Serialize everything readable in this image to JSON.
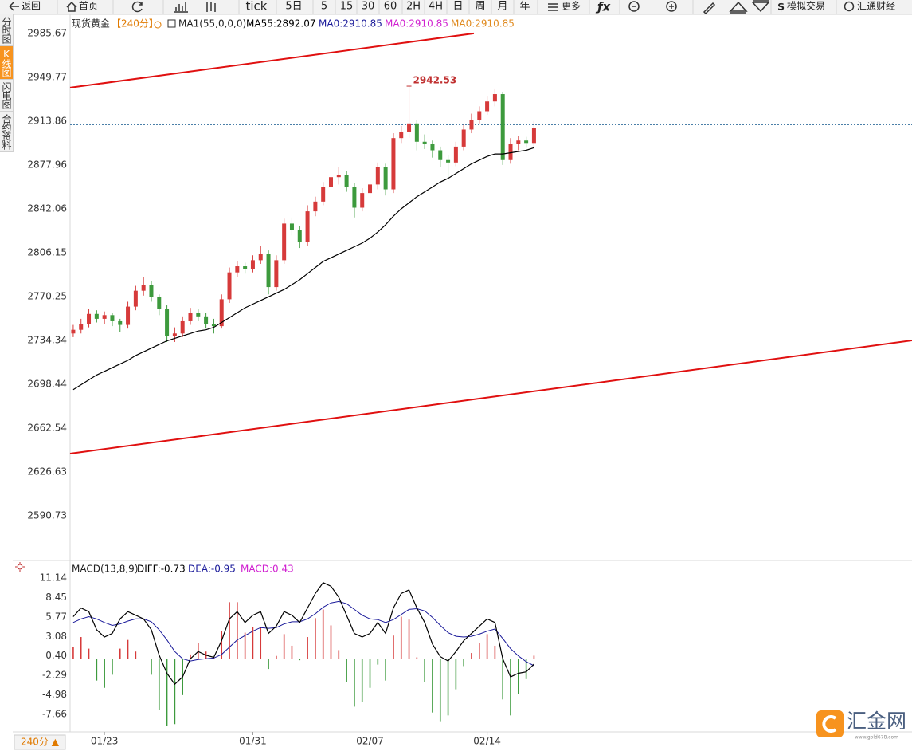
{
  "toolbar": {
    "back": "返回",
    "home": "首页",
    "tick": "tick",
    "periods": [
      "5日",
      "5",
      "15",
      "30",
      "60",
      "2H",
      "4H",
      "日",
      "周",
      "月",
      "年"
    ],
    "more": "更多",
    "sim": "模拟交易",
    "brand": "汇通财经"
  },
  "sidebar": [
    "分时图",
    "K线图",
    "闪电图",
    "合约资料"
  ],
  "period_button": "240分 ▲",
  "logo": "汇金网",
  "logo_url": "www.gold678.com",
  "chart_data": [
    {
      "type": "candlestick",
      "title": "现货黄金",
      "period": "【240分】",
      "indicator": "MA1(55,0,0,0)",
      "header": [
        {
          "text": "MA55:2892.07",
          "color": "#000000"
        },
        {
          "text": "MA0:2910.85",
          "color": "#1a1a9a"
        },
        {
          "text": "MA0:2910.85",
          "color": "#d020d0"
        },
        {
          "text": "MA0:2910.85",
          "color": "#e08a1e"
        }
      ],
      "up_color": "#d63a3a",
      "down_color": "#3d9a3d",
      "xlim": [
        -0.4,
        107.4
      ],
      "ylim": [
        2556.1,
        3001.3
      ],
      "yticks": [
        2985.67,
        2949.77,
        2913.86,
        2877.96,
        2842.06,
        2806.15,
        2770.25,
        2734.34,
        2698.44,
        2662.54,
        2626.63,
        2590.73
      ],
      "price_line": 2910.85,
      "candles": [
        [
          2740,
          2747,
          2737,
          2743
        ],
        [
          2743,
          2752,
          2740,
          2748
        ],
        [
          2748,
          2760,
          2745,
          2756
        ],
        [
          2756,
          2759,
          2749,
          2752
        ],
        [
          2752,
          2758,
          2748,
          2755
        ],
        [
          2755,
          2757,
          2746,
          2750
        ],
        [
          2750,
          2752,
          2741,
          2747
        ],
        [
          2747,
          2766,
          2744,
          2762
        ],
        [
          2762,
          2779,
          2759,
          2775
        ],
        [
          2775,
          2786,
          2771,
          2780
        ],
        [
          2780,
          2783,
          2766,
          2770
        ],
        [
          2770,
          2772,
          2755,
          2760
        ],
        [
          2760,
          2763,
          2733,
          2738
        ],
        [
          2738,
          2745,
          2733,
          2740
        ],
        [
          2740,
          2754,
          2737,
          2750
        ],
        [
          2750,
          2761,
          2747,
          2757
        ],
        [
          2757,
          2760,
          2750,
          2754
        ],
        [
          2754,
          2757,
          2744,
          2748
        ],
        [
          2748,
          2752,
          2740,
          2746
        ],
        [
          2746,
          2772,
          2744,
          2768
        ],
        [
          2768,
          2794,
          2765,
          2790
        ],
        [
          2790,
          2799,
          2786,
          2795
        ],
        [
          2795,
          2798,
          2789,
          2793
        ],
        [
          2793,
          2804,
          2790,
          2800
        ],
        [
          2800,
          2812,
          2797,
          2805
        ],
        [
          2805,
          2808,
          2772,
          2778
        ],
        [
          2778,
          2804,
          2775,
          2800
        ],
        [
          2800,
          2834,
          2797,
          2830
        ],
        [
          2830,
          2835,
          2820,
          2825
        ],
        [
          2825,
          2828,
          2810,
          2815
        ],
        [
          2815,
          2845,
          2812,
          2840
        ],
        [
          2840,
          2852,
          2836,
          2848
        ],
        [
          2848,
          2864,
          2845,
          2860
        ],
        [
          2860,
          2884,
          2856,
          2868
        ],
        [
          2868,
          2876,
          2862,
          2870
        ],
        [
          2870,
          2873,
          2856,
          2860
        ],
        [
          2860,
          2863,
          2835,
          2843
        ],
        [
          2843,
          2859,
          2840,
          2855
        ],
        [
          2855,
          2866,
          2851,
          2862
        ],
        [
          2862,
          2880,
          2858,
          2876
        ],
        [
          2876,
          2879,
          2853,
          2858
        ],
        [
          2858,
          2904,
          2855,
          2900
        ],
        [
          2900,
          2910,
          2896,
          2905
        ],
        [
          2905,
          2942.53,
          2900,
          2912
        ],
        [
          2912,
          2915,
          2890,
          2897
        ],
        [
          2897,
          2903,
          2891,
          2895
        ],
        [
          2895,
          2898,
          2884,
          2890
        ],
        [
          2890,
          2893,
          2876,
          2882
        ],
        [
          2882,
          2886,
          2868,
          2880
        ],
        [
          2880,
          2897,
          2877,
          2893
        ],
        [
          2893,
          2911,
          2890,
          2907
        ],
        [
          2907,
          2920,
          2904,
          2915
        ],
        [
          2915,
          2926,
          2912,
          2922
        ],
        [
          2922,
          2934,
          2919,
          2930
        ],
        [
          2930,
          2940,
          2926,
          2936
        ],
        [
          2936,
          2938,
          2878,
          2882
        ],
        [
          2882,
          2900,
          2879,
          2895
        ],
        [
          2895,
          2902,
          2890,
          2898
        ],
        [
          2898,
          2901,
          2892,
          2896
        ],
        [
          2896,
          2914,
          2893,
          2908
        ]
      ],
      "lines": [
        {
          "color": "#000000",
          "values": [
            2694,
            2698,
            2702,
            2706,
            2709,
            2712,
            2715,
            2718,
            2722,
            2725,
            2728,
            2731,
            2734,
            2736,
            2738,
            2740,
            2742,
            2743,
            2745,
            2749,
            2753,
            2757,
            2761,
            2764,
            2767,
            2770,
            2773,
            2776,
            2780,
            2784,
            2789,
            2794,
            2799,
            2802,
            2805,
            2808,
            2811,
            2814,
            2818,
            2823,
            2829,
            2836,
            2842,
            2847,
            2852,
            2856,
            2860,
            2864,
            2867,
            2871,
            2875,
            2879,
            2882,
            2885,
            2887,
            2887,
            2888,
            2889,
            2890,
            2892.07
          ]
        }
      ],
      "trendlines": [
        {
          "color": "#e01010",
          "x": [
            -0.4,
            51.3
          ],
          "y": [
            2941.3,
            2985.7
          ]
        },
        {
          "color": "#e01010",
          "x": [
            -0.4,
            107.4
          ],
          "y": [
            2641.6,
            2734.3
          ]
        }
      ]
    },
    {
      "type": "macd",
      "title": "MACD(13,8,9)",
      "header": [
        {
          "text": "DIFF:-0.73",
          "color": "#000000"
        },
        {
          "text": "DEA:-0.95",
          "color": "#1a1a9a"
        },
        {
          "text": "MACD:0.43",
          "color": "#d020d0"
        }
      ],
      "xlim": [
        -0.4,
        107.4
      ],
      "ylim": [
        -9.74,
        13.33
      ],
      "yticks": [
        11.14,
        8.45,
        5.77,
        3.08,
        {
          "value": 0.4,
          "label": "0.40"
        },
        -2.29,
        -4.98,
        -7.66
      ],
      "xticks": [
        {
          "value": 4,
          "label": "01/23"
        },
        {
          "value": 23,
          "label": "01/31"
        },
        {
          "value": 38,
          "label": "02/07"
        },
        {
          "value": 53,
          "label": "02/14"
        }
      ],
      "up_color": "#d63a3a",
      "down_color": "#3d9a3d",
      "diff_color": "#000000",
      "dea_color": "#1a1a9a",
      "histogram": [
        1.6,
        3.0,
        1.4,
        -3.0,
        -4.0,
        -2.2,
        1.4,
        2.6,
        1.0,
        0.0,
        -2.2,
        -7.0,
        -9.2,
        -9.0,
        -5.0,
        0.6,
        2.2,
        1.0,
        0.2,
        3.8,
        7.8,
        7.8,
        3.6,
        4.4,
        4.4,
        -1.4,
        0.4,
        3.4,
        1.8,
        -0.2,
        3.0,
        5.6,
        6.8,
        4.6,
        1.2,
        -3.2,
        -6.6,
        -6.0,
        -4.0,
        -0.8,
        -3.0,
        3.2,
        5.8,
        5.4,
        0.2,
        -3.2,
        -7.4,
        -8.6,
        -7.8,
        -4.2,
        -1.0,
        0.8,
        2.2,
        3.4,
        1.8,
        -5.6,
        -7.8,
        -4.8,
        -2.8,
        0.43
      ],
      "diff": [
        5.8,
        7.0,
        6.5,
        4.0,
        3.0,
        3.5,
        5.5,
        6.5,
        6.0,
        5.5,
        4.0,
        0.5,
        -2.0,
        -3.5,
        -2.5,
        0.0,
        1.0,
        0.5,
        0.2,
        2.5,
        5.5,
        6.5,
        5.0,
        6.0,
        6.5,
        3.5,
        4.5,
        6.5,
        6.0,
        5.0,
        7.0,
        9.0,
        10.5,
        10.0,
        8.5,
        6.0,
        3.5,
        3.0,
        3.5,
        5.0,
        3.5,
        7.0,
        9.0,
        9.5,
        7.0,
        5.0,
        2.0,
        0.3,
        -0.3,
        1.0,
        2.5,
        3.5,
        4.5,
        5.5,
        5.0,
        0.0,
        -2.5,
        -2.0,
        -1.8,
        -0.73
      ],
      "dea": [
        5.0,
        5.5,
        5.8,
        5.5,
        5.0,
        4.6,
        4.8,
        5.2,
        5.5,
        5.5,
        5.1,
        4.0,
        2.6,
        1.0,
        0.0,
        -0.3,
        -0.1,
        0.0,
        0.1,
        0.6,
        1.6,
        2.6,
        3.2,
        3.8,
        4.3,
        4.2,
        4.3,
        4.8,
        5.1,
        5.1,
        5.5,
        6.2,
        7.1,
        7.7,
        7.9,
        7.6,
        6.8,
        6.0,
        5.5,
        5.4,
        5.0,
        5.4,
        6.1,
        6.8,
        6.9,
        6.6,
        5.7,
        4.6,
        3.6,
        3.1,
        3.0,
        3.1,
        3.4,
        3.8,
        4.1,
        2.8,
        1.4,
        0.4,
        -0.4,
        -0.95
      ]
    }
  ]
}
